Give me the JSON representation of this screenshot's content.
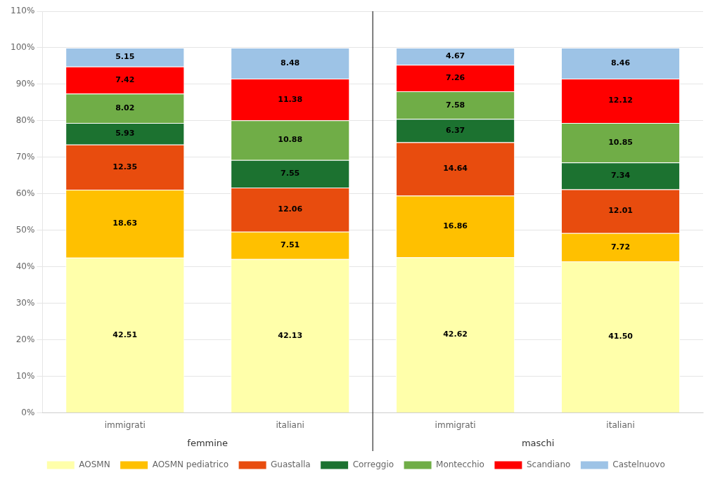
{
  "chart_data": {
    "type": "bar",
    "stacked": true,
    "data_labels": true,
    "categories": [
      "immigrati",
      "italiani",
      "immigrati",
      "italiani"
    ],
    "group_labels": [
      "femmine",
      "maschi"
    ],
    "series": [
      {
        "name": "AOSMN",
        "color": "#ffffaa",
        "values": [
          42.51,
          42.13,
          42.62,
          41.5
        ],
        "value_labels": [
          "42.51",
          "42.13",
          "42.62",
          "41.50"
        ]
      },
      {
        "name": "AOSMN pediatrico",
        "color": "#ffc000",
        "values": [
          18.63,
          7.51,
          16.86,
          7.72
        ]
      },
      {
        "name": "Guastalla",
        "color": "#e84c0e",
        "values": [
          12.35,
          12.06,
          14.64,
          12.01
        ]
      },
      {
        "name": "Correggio",
        "color": "#1c7230",
        "values": [
          5.93,
          7.55,
          6.37,
          7.34
        ]
      },
      {
        "name": "Montecchio",
        "color": "#70ad47",
        "values": [
          8.02,
          10.88,
          7.58,
          10.85
        ]
      },
      {
        "name": "Scandiano",
        "color": "#ff0000",
        "values": [
          7.42,
          11.38,
          7.26,
          12.12
        ]
      },
      {
        "name": "Castelnuovo",
        "color": "#9dc3e6",
        "values": [
          5.15,
          8.48,
          4.67,
          8.46
        ]
      }
    ],
    "ylim": [
      0,
      110
    ],
    "yticks": [
      {
        "value": 0,
        "label": "0%"
      },
      {
        "value": 10,
        "label": "10%"
      },
      {
        "value": 20,
        "label": "20%"
      },
      {
        "value": 30,
        "label": "30%"
      },
      {
        "value": 40,
        "label": "40%"
      },
      {
        "value": 50,
        "label": "50%"
      },
      {
        "value": 60,
        "label": "60%"
      },
      {
        "value": 70,
        "label": "70%"
      },
      {
        "value": 80,
        "label": "80%"
      },
      {
        "value": 90,
        "label": "90%"
      },
      {
        "value": 100,
        "label": "100%"
      },
      {
        "value": 110,
        "label": "110%"
      }
    ],
    "grid": "y",
    "legend": "bottom"
  }
}
